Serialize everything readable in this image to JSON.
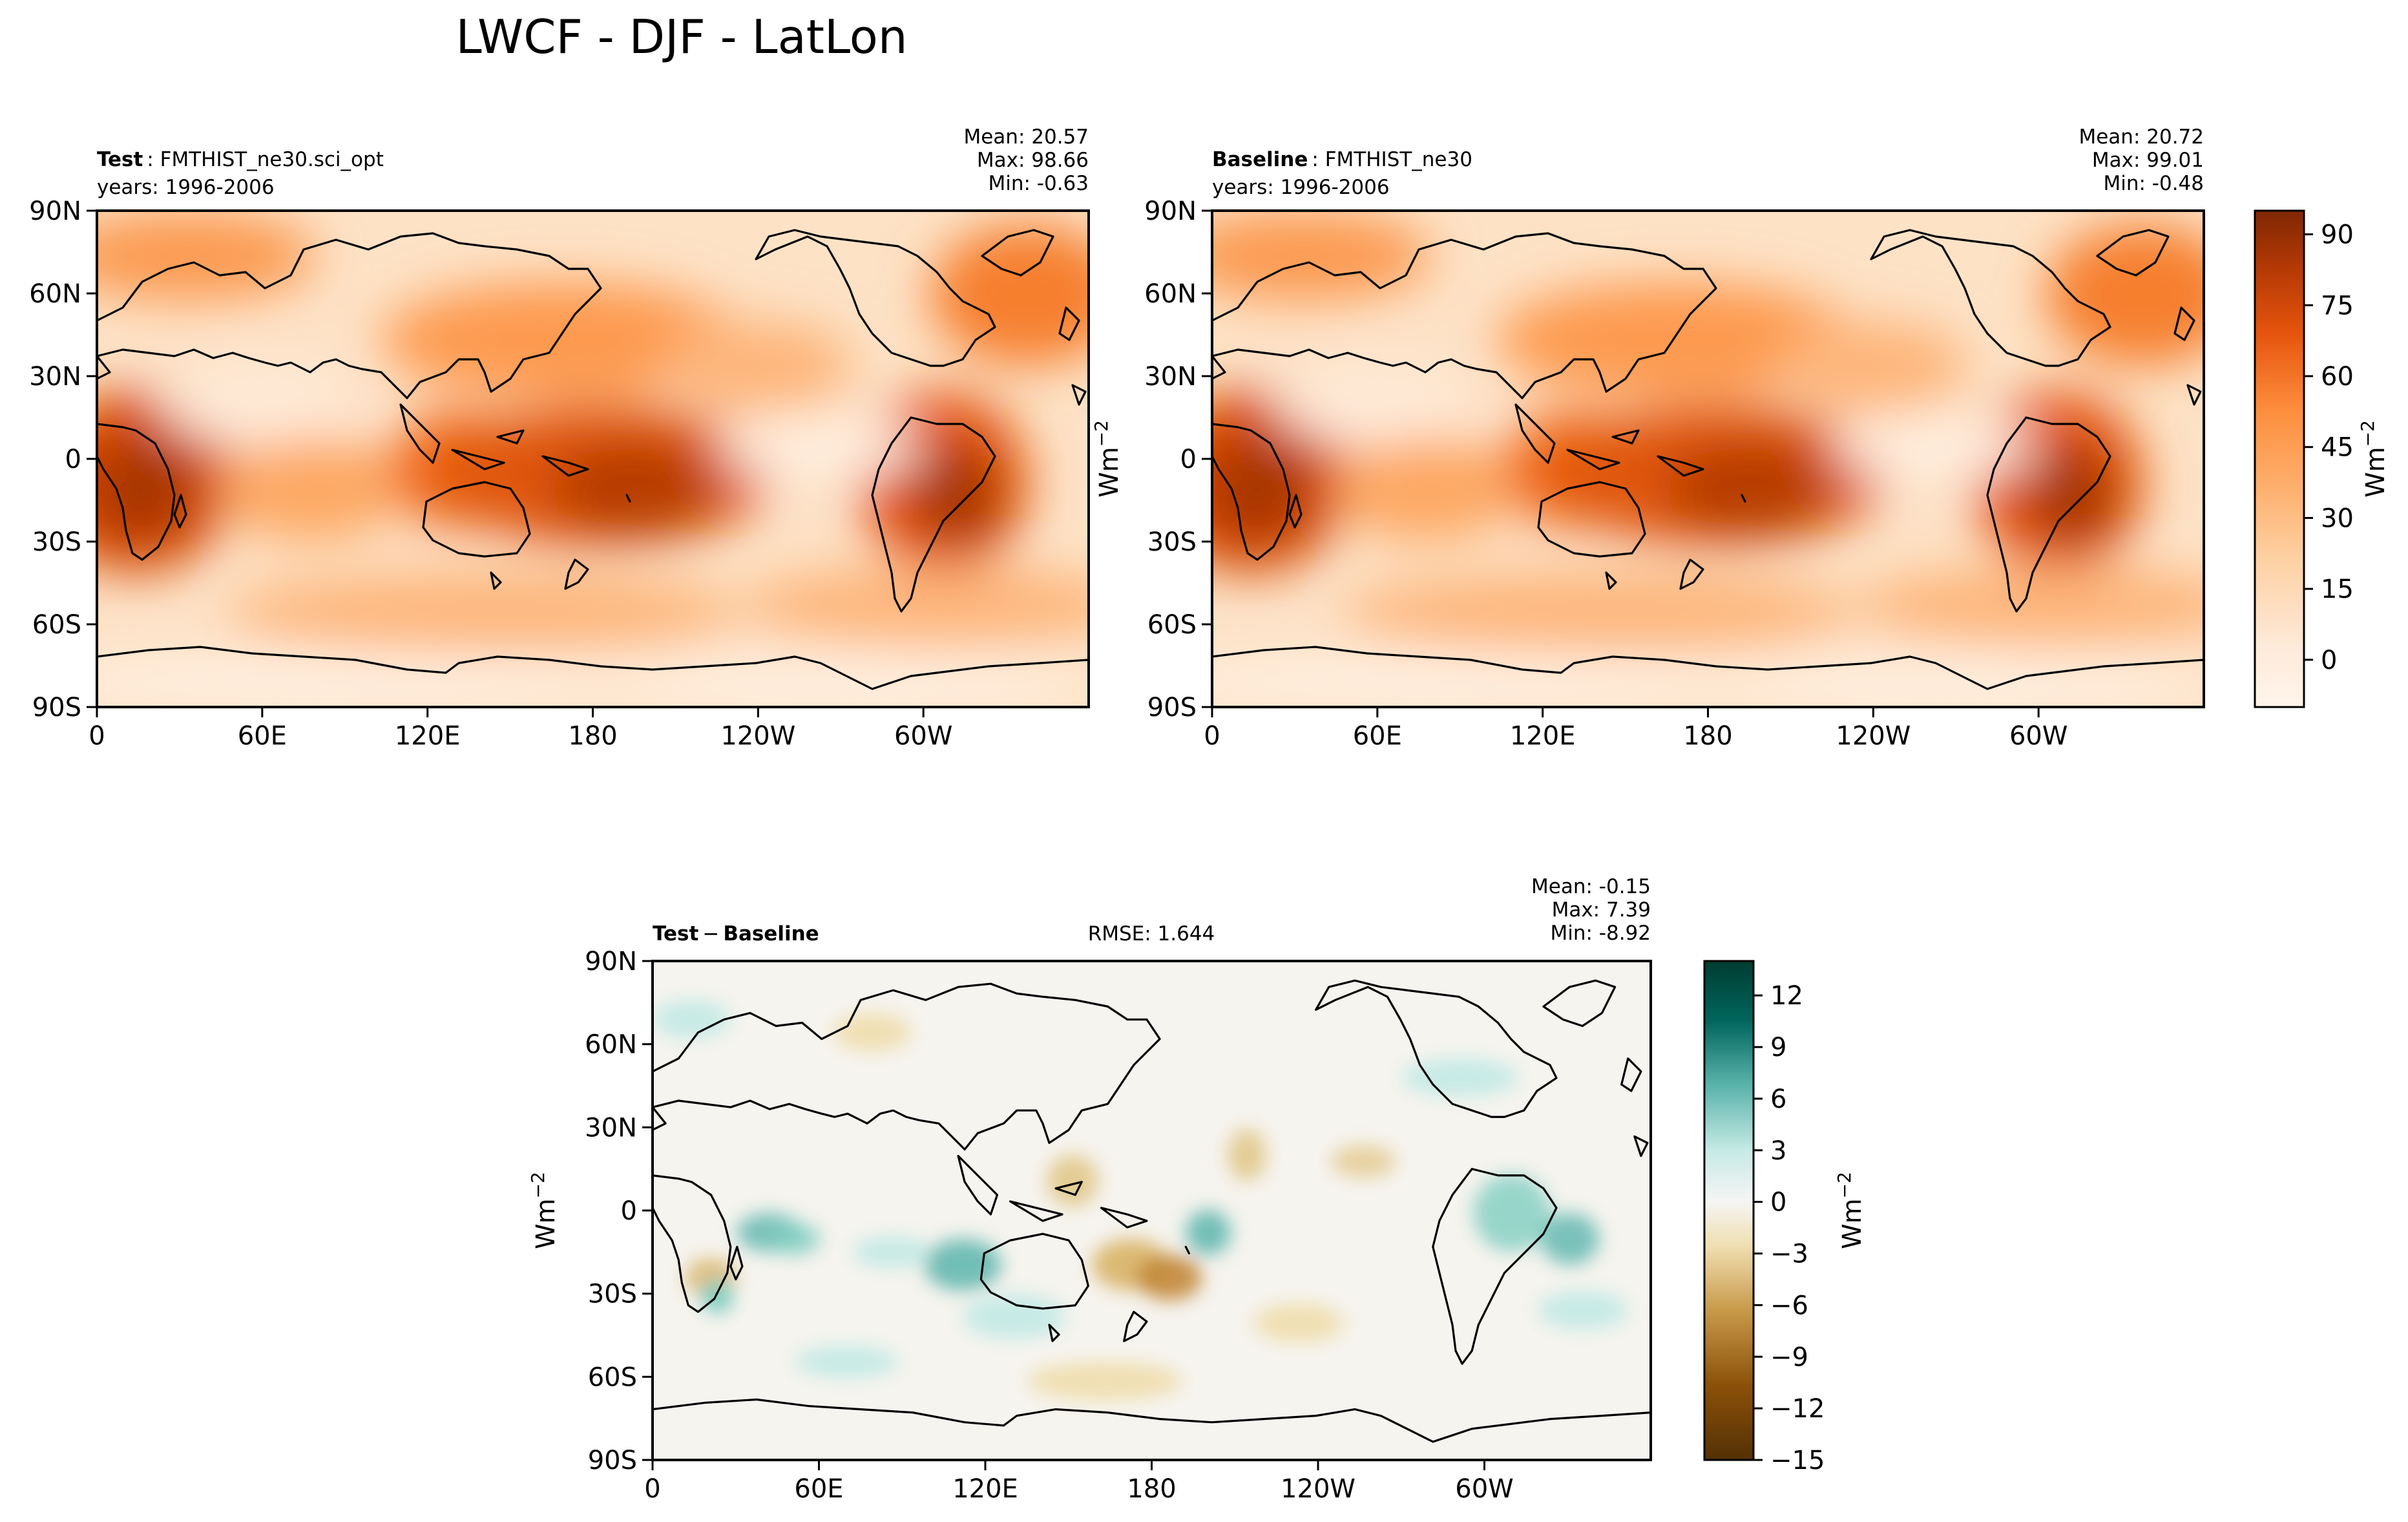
{
  "figure": {
    "title": "LWCF - DJF - LatLon"
  },
  "chart_data": [
    {
      "type": "heatmap",
      "panel": "test",
      "label_bold": "Test",
      "label_name": "FMTHIST_ne30.sci_opt",
      "years": "years: 1996-2006",
      "stats": {
        "mean": "Mean: 20.57",
        "max": "Max: 98.66",
        "min": "Min: -0.63"
      },
      "x_ticks": [
        "0",
        "60E",
        "120E",
        "180",
        "120W",
        "60W"
      ],
      "y_ticks": [
        "90N",
        "60N",
        "30N",
        "0",
        "30S",
        "60S",
        "90S"
      ],
      "xlim": [
        0,
        360
      ],
      "ylim": [
        -90,
        90
      ],
      "colormap": "Oranges",
      "colorbar_range": [
        -10,
        95
      ]
    },
    {
      "type": "heatmap",
      "panel": "baseline",
      "label_bold": "Baseline",
      "label_name": "FMTHIST_ne30",
      "years": "years: 1996-2006",
      "stats": {
        "mean": "Mean: 20.72",
        "max": "Max: 99.01",
        "min": "Min: -0.48"
      },
      "x_ticks": [
        "0",
        "60E",
        "120E",
        "180",
        "120W",
        "60W"
      ],
      "y_ticks": [
        "90N",
        "60N",
        "30N",
        "0",
        "30S",
        "60S",
        "90S"
      ],
      "xlim": [
        0,
        360
      ],
      "ylim": [
        -90,
        90
      ],
      "colormap": "Oranges",
      "colorbar_range": [
        -10,
        95
      ]
    },
    {
      "type": "heatmap",
      "panel": "difference",
      "label_bold": "Test",
      "label_sep": "−",
      "label_bold2": "Baseline",
      "rmse": "RMSE: 1.644",
      "stats": {
        "mean": "Mean: -0.15",
        "max": "Max:  7.39",
        "min": "Min: -8.92"
      },
      "x_ticks": [
        "0",
        "60E",
        "120E",
        "180",
        "120W",
        "60W"
      ],
      "y_ticks": [
        "90N",
        "60N",
        "30N",
        "0",
        "30S",
        "60S",
        "90S"
      ],
      "xlim": [
        0,
        360
      ],
      "ylim": [
        -90,
        90
      ],
      "colormap": "BrBG",
      "colorbar_range": [
        -15,
        14
      ]
    }
  ],
  "colorbars": {
    "top": {
      "ticks": [
        "90",
        "75",
        "60",
        "45",
        "30",
        "15",
        "0"
      ],
      "values": [
        90,
        75,
        60,
        45,
        30,
        15,
        0
      ],
      "range": [
        -10,
        95
      ],
      "unit_base": "Wm",
      "unit_exp": "−2"
    },
    "diff": {
      "ticks": [
        "12",
        "9",
        "6",
        "3",
        "0",
        "−3",
        "−6",
        "−9",
        "−12",
        "−15"
      ],
      "values": [
        12,
        9,
        6,
        3,
        0,
        -3,
        -6,
        -9,
        -12,
        -15
      ],
      "range": [
        -15,
        14
      ],
      "unit_base": "Wm",
      "unit_exp": "−2"
    }
  },
  "y_unit": {
    "base": "Wm",
    "exp": "−2"
  },
  "colors": {
    "orange_low": "#fff5eb",
    "orange_mid": "#fdae6b",
    "orange_high": "#7f2704",
    "diff_neg": "#543005",
    "diff_zero": "#f5f5f5",
    "diff_pos": "#003c30"
  }
}
